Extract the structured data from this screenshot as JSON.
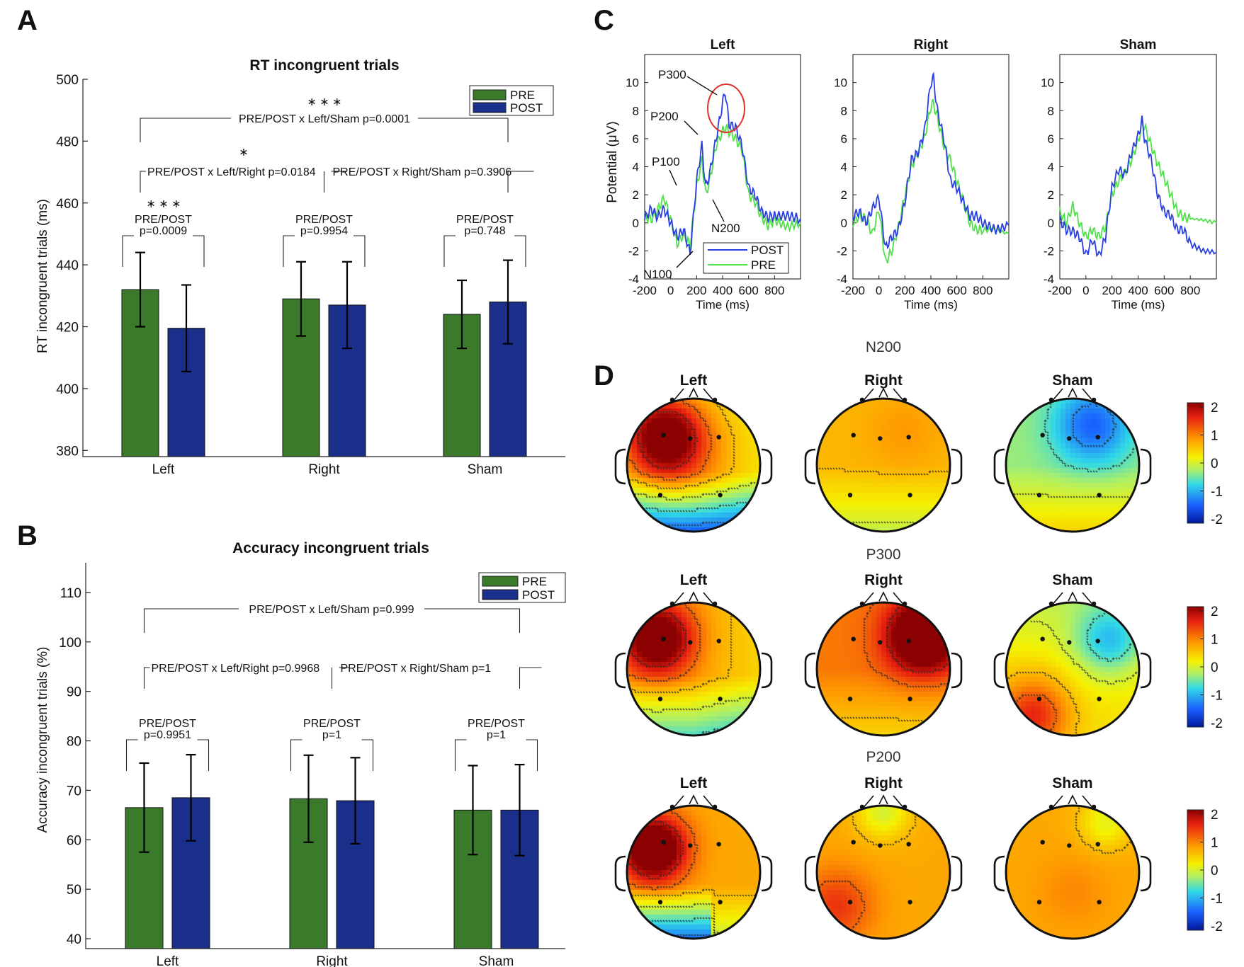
{
  "panels": {
    "a": "A",
    "b": "B",
    "c": "C",
    "d": "D"
  },
  "colors": {
    "pre_bar": "#3a7a2a",
    "post_bar": "#1a2f8a",
    "post_line": "#2a3fe0",
    "pre_line": "#52e04a",
    "highlight": "#e03030"
  },
  "chart_data": [
    {
      "type": "bar",
      "title": "RT incongruent trials",
      "ylabel": "RT incongruent trials (ms)",
      "xlabel": "",
      "categories": [
        "Left",
        "Right",
        "Sham"
      ],
      "ylim": [
        378,
        500
      ],
      "yticks": [
        380,
        400,
        420,
        440,
        460,
        480,
        500
      ],
      "series": [
        {
          "name": "PRE",
          "color": "#3a7a2a",
          "values": [
            432,
            429,
            424
          ],
          "errors": [
            12,
            12,
            11
          ]
        },
        {
          "name": "POST",
          "color": "#1a2f8a",
          "values": [
            419.5,
            427,
            428
          ],
          "errors": [
            14,
            14,
            13.5
          ]
        }
      ],
      "pair_labels": [
        [
          "PRE/POST",
          "p=0.0009"
        ],
        [
          "PRE/POST",
          "p=0.9954"
        ],
        [
          "PRE/POST",
          "p=0.748"
        ]
      ],
      "comparisons": {
        "left_right": "PRE/POST x Left/Right p=0.0184",
        "right_sham": "PRE/POST x Right/Sham p=0.3906",
        "left_sham": "PRE/POST x Left/Sham p=0.0001"
      },
      "sig": {
        "left_sham": "∗ ∗ ∗",
        "left_right": "∗",
        "pre_post_left": "∗ ∗ ∗"
      },
      "legend_position": "top-right"
    },
    {
      "type": "bar",
      "title": "Accuracy incongruent trials",
      "ylabel": "Accuracy incongruent trials (%)",
      "xlabel": "",
      "categories": [
        "Left",
        "Right",
        "Sham"
      ],
      "ylim": [
        38,
        116
      ],
      "yticks": [
        40,
        50,
        60,
        70,
        80,
        90,
        100,
        110
      ],
      "series": [
        {
          "name": "PRE",
          "color": "#3a7a2a",
          "values": [
            66.5,
            68.3,
            66
          ],
          "errors": [
            9,
            8.8,
            9
          ]
        },
        {
          "name": "POST",
          "color": "#1a2f8a",
          "values": [
            68.5,
            67.9,
            66
          ],
          "errors": [
            8.7,
            8.7,
            9.2
          ]
        }
      ],
      "pair_labels": [
        [
          "PRE/POST",
          "p=0.9951"
        ],
        [
          "PRE/POST",
          "p=1"
        ],
        [
          "PRE/POST",
          "p=1"
        ]
      ],
      "comparisons": {
        "left_right": "PRE/POST x Left/Right p=0.9968",
        "right_sham": "PRE/POST x Right/Sham p=1",
        "left_sham": "PRE/POST x Left/Sham p=0.999"
      },
      "sig": {},
      "legend_position": "top-right"
    },
    {
      "type": "line",
      "panel": "C",
      "xlabel": "Time (ms)",
      "ylabel": "Potential (μV)",
      "xlim": [
        -200,
        1000
      ],
      "ylim": [
        -4,
        12
      ],
      "xticks": [
        -200,
        0,
        200,
        400,
        600,
        800
      ],
      "yticks": [
        -4,
        -2,
        0,
        2,
        4,
        6,
        8,
        10
      ],
      "legend": [
        "POST",
        "PRE"
      ],
      "annotations": [
        "P300",
        "P200",
        "P100",
        "N200",
        "N100"
      ],
      "subplots": [
        {
          "title": "Left",
          "series": [
            {
              "name": "POST",
              "x": [
                -200,
                -150,
                -100,
                -50,
                0,
                50,
                100,
                150,
                200,
                240,
                270,
                300,
                350,
                400,
                420,
                450,
                500,
                550,
                600,
                650,
                700,
                750,
                800,
                900,
                1000
              ],
              "y": [
                0.3,
                1.0,
                0.4,
                1.0,
                0.0,
                -1.0,
                -0.5,
                -2.2,
                3.0,
                5.5,
                2.5,
                3.5,
                6.0,
                8.5,
                9.4,
                7.0,
                6.8,
                5.5,
                2.5,
                2.0,
                0.8,
                0.4,
                0.5,
                0.5,
                0.3
              ]
            },
            {
              "name": "PRE",
              "x": [
                -200,
                -150,
                -100,
                -50,
                0,
                50,
                100,
                150,
                200,
                240,
                270,
                300,
                350,
                400,
                420,
                450,
                500,
                550,
                600,
                650,
                700,
                750,
                800,
                900,
                1000
              ],
              "y": [
                0.5,
                0.2,
                0.9,
                1.8,
                0.2,
                -1.5,
                -0.8,
                -1.6,
                2.5,
                4.5,
                2.0,
                3.0,
                5.5,
                6.5,
                6.8,
                6.5,
                6.0,
                5.2,
                2.0,
                1.5,
                0.4,
                -0.2,
                0.2,
                -0.3,
                0.0
              ]
            }
          ]
        },
        {
          "title": "Right",
          "series": [
            {
              "name": "POST",
              "x": [
                -200,
                -150,
                -100,
                -50,
                0,
                50,
                100,
                150,
                200,
                250,
                300,
                350,
                400,
                420,
                450,
                500,
                550,
                600,
                650,
                700,
                750,
                800,
                900,
                1000
              ],
              "y": [
                0.5,
                0.8,
                0.0,
                1.0,
                1.8,
                -1.8,
                -1.0,
                -0.5,
                1.5,
                4.5,
                5.0,
                6.5,
                10.0,
                10.3,
                8.0,
                6.0,
                3.0,
                2.5,
                1.5,
                0.5,
                0.5,
                0.0,
                -0.5,
                -0.2
              ]
            },
            {
              "name": "PRE",
              "x": [
                -200,
                -150,
                -100,
                -50,
                0,
                50,
                100,
                150,
                200,
                250,
                300,
                350,
                400,
                420,
                450,
                500,
                550,
                600,
                650,
                700,
                750,
                800,
                900,
                1000
              ],
              "y": [
                0.0,
                0.5,
                0.3,
                -0.8,
                1.0,
                -2.8,
                -2.0,
                -0.3,
                2.0,
                4.0,
                5.0,
                6.0,
                8.3,
                8.5,
                7.5,
                5.5,
                4.5,
                3.0,
                1.5,
                0.0,
                -0.5,
                -0.5,
                -0.5,
                -0.8
              ]
            }
          ]
        },
        {
          "title": "Sham",
          "series": [
            {
              "name": "POST",
              "x": [
                -200,
                -150,
                -100,
                -50,
                0,
                50,
                100,
                150,
                200,
                250,
                300,
                350,
                400,
                430,
                450,
                500,
                550,
                600,
                650,
                700,
                750,
                800,
                900,
                1000
              ],
              "y": [
                0.2,
                -0.5,
                -0.6,
                -1.0,
                -2.3,
                -1.2,
                -2.4,
                -1.0,
                2.5,
                3.8,
                3.4,
                5.0,
                6.2,
                7.3,
                6.0,
                4.5,
                2.0,
                0.8,
                0.5,
                -0.5,
                -0.5,
                -1.5,
                -2.0,
                -2.1
              ]
            },
            {
              "name": "PRE",
              "x": [
                -200,
                -150,
                -100,
                -50,
                0,
                50,
                100,
                150,
                200,
                250,
                300,
                350,
                400,
                430,
                450,
                500,
                550,
                600,
                650,
                700,
                750,
                800,
                900,
                1000
              ],
              "y": [
                0.8,
                0.0,
                1.2,
                0.0,
                -1.0,
                -0.5,
                -1.0,
                -0.3,
                2.0,
                3.0,
                3.6,
                4.5,
                5.8,
                7.0,
                6.9,
                5.5,
                4.2,
                3.2,
                2.0,
                0.8,
                0.4,
                0.3,
                0.2,
                0.0
              ]
            }
          ]
        }
      ]
    },
    {
      "type": "heatmap",
      "panel": "D",
      "colorbar_ticks": [
        "2",
        "1",
        "0",
        "-1",
        "-2"
      ],
      "rows": [
        {
          "title": "N200",
          "maps": [
            {
              "title": "Left",
              "field": "left_frontal_pos_posterior_neg"
            },
            {
              "title": "Right",
              "field": "mild_positive"
            },
            {
              "title": "Sham",
              "field": "frontal_neg"
            }
          ]
        },
        {
          "title": "P300",
          "maps": [
            {
              "title": "Left",
              "field": "left_frontal_pos"
            },
            {
              "title": "Right",
              "field": "right_frontal_strong_pos"
            },
            {
              "title": "Sham",
              "field": "right_frontal_neg_posterior_pos"
            }
          ]
        },
        {
          "title": "P200",
          "maps": [
            {
              "title": "Left",
              "field": "left_frontal_strong_pos_posterior_neg"
            },
            {
              "title": "Right",
              "field": "moderate_pos"
            },
            {
              "title": "Sham",
              "field": "moderate_pos_frontal_cool"
            }
          ]
        }
      ]
    }
  ]
}
